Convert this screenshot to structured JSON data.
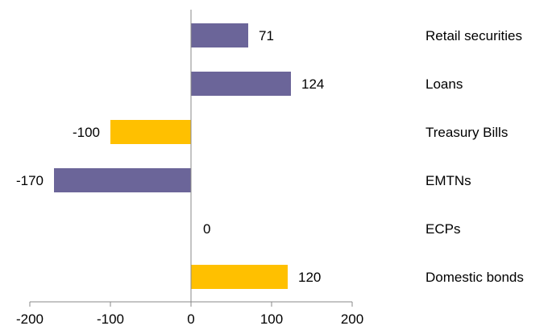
{
  "chart_data": {
    "type": "bar",
    "orientation": "horizontal",
    "categories": [
      "Retail securities",
      "Loans",
      "Treasury Bills",
      "EMTNs",
      "ECPs",
      "Domestic bonds"
    ],
    "values": [
      71,
      124,
      -100,
      -170,
      0,
      120
    ],
    "data_labels": [
      "71",
      "124",
      "-100",
      "-170",
      "0",
      "120"
    ],
    "bar_colors": [
      "#6B6599",
      "#6B6599",
      "#FFC000",
      "#6B6599",
      "#6B6599",
      "#FFC000"
    ],
    "xlim": [
      -200,
      200
    ],
    "x_ticks": [
      -200,
      -100,
      0,
      100,
      200
    ],
    "x_tick_labels": [
      "-200",
      "-100",
      "0",
      "100",
      "200"
    ],
    "category_labels_position": "right",
    "title": "",
    "xlabel": "",
    "ylabel": "",
    "grid": false,
    "legend": false
  }
}
